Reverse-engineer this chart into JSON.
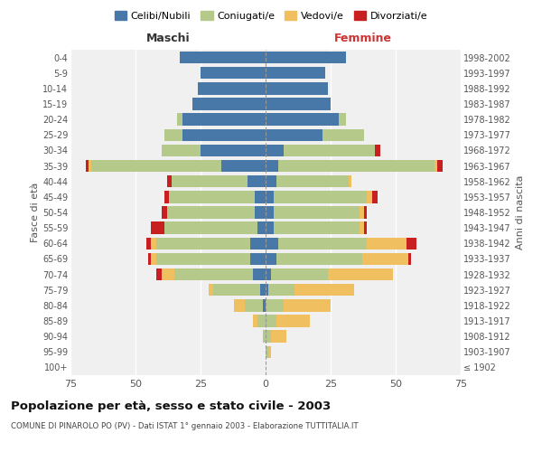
{
  "age_groups": [
    "100+",
    "95-99",
    "90-94",
    "85-89",
    "80-84",
    "75-79",
    "70-74",
    "65-69",
    "60-64",
    "55-59",
    "50-54",
    "45-49",
    "40-44",
    "35-39",
    "30-34",
    "25-29",
    "20-24",
    "15-19",
    "10-14",
    "5-9",
    "0-4"
  ],
  "birth_years": [
    "≤ 1902",
    "1903-1907",
    "1908-1912",
    "1913-1917",
    "1918-1922",
    "1923-1927",
    "1928-1932",
    "1933-1937",
    "1938-1942",
    "1943-1947",
    "1948-1952",
    "1953-1957",
    "1958-1962",
    "1963-1967",
    "1968-1972",
    "1973-1977",
    "1978-1982",
    "1983-1987",
    "1988-1992",
    "1993-1997",
    "1998-2002"
  ],
  "males": {
    "celibi": [
      0,
      0,
      0,
      0,
      1,
      2,
      5,
      6,
      6,
      3,
      4,
      4,
      7,
      17,
      25,
      32,
      32,
      28,
      26,
      25,
      33
    ],
    "coniugati": [
      0,
      0,
      1,
      3,
      7,
      18,
      30,
      36,
      36,
      36,
      34,
      33,
      29,
      50,
      15,
      7,
      2,
      0,
      0,
      0,
      0
    ],
    "vedovi": [
      0,
      0,
      0,
      2,
      4,
      2,
      5,
      2,
      2,
      0,
      0,
      0,
      0,
      1,
      0,
      0,
      0,
      0,
      0,
      0,
      0
    ],
    "divorziati": [
      0,
      0,
      0,
      0,
      0,
      0,
      2,
      1,
      2,
      5,
      2,
      2,
      2,
      1,
      0,
      0,
      0,
      0,
      0,
      0,
      0
    ]
  },
  "females": {
    "nubili": [
      0,
      0,
      0,
      0,
      0,
      1,
      2,
      4,
      5,
      3,
      3,
      3,
      4,
      5,
      7,
      22,
      28,
      25,
      24,
      23,
      31
    ],
    "coniugate": [
      0,
      1,
      2,
      4,
      7,
      10,
      22,
      33,
      34,
      33,
      33,
      36,
      28,
      60,
      35,
      16,
      3,
      0,
      0,
      0,
      0
    ],
    "vedove": [
      0,
      1,
      6,
      13,
      18,
      23,
      25,
      18,
      15,
      2,
      2,
      2,
      1,
      1,
      0,
      0,
      0,
      0,
      0,
      0,
      0
    ],
    "divorziate": [
      0,
      0,
      0,
      0,
      0,
      0,
      0,
      1,
      4,
      1,
      1,
      2,
      0,
      2,
      2,
      0,
      0,
      0,
      0,
      0,
      0
    ]
  },
  "colors": {
    "celibi": "#4878a8",
    "coniugati": "#b5c98a",
    "vedovi": "#f0c060",
    "divorziati": "#c82020"
  },
  "xlim": 75,
  "title": "Popolazione per età, sesso e stato civile - 2003",
  "subtitle": "COMUNE DI PINAROLO PO (PV) - Dati ISTAT 1° gennaio 2003 - Elaborazione TUTTITALIA.IT",
  "ylabel_left": "Fasce di età",
  "ylabel_right": "Anni di nascita",
  "xlabel_left": "Maschi",
  "xlabel_right": "Femmine",
  "legend_labels": [
    "Celibi/Nubili",
    "Coniugati/e",
    "Vedovi/e",
    "Divorziati/e"
  ],
  "bg_color": "#f0f0f0"
}
